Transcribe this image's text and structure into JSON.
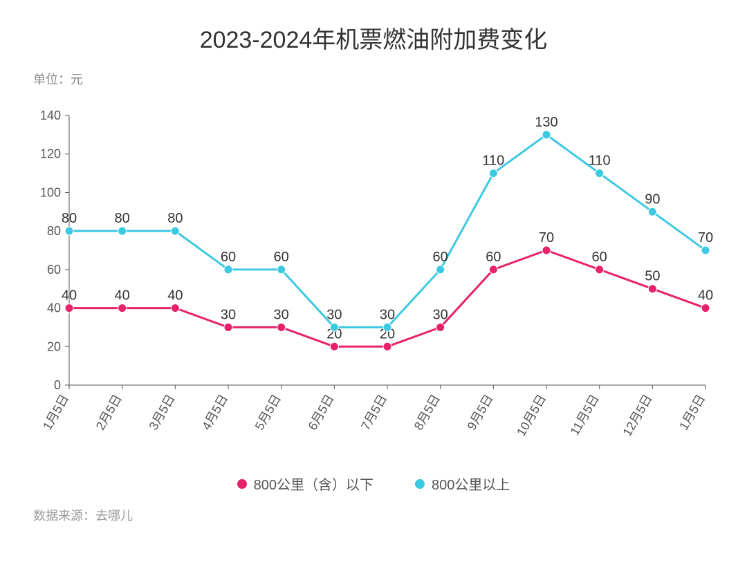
{
  "title": "2023-2024年机票燃油附加费变化",
  "unit_label": "单位：元",
  "source_label": "数据来源：去哪儿",
  "chart": {
    "type": "line",
    "categories": [
      "1月5日",
      "2月5日",
      "3月5日",
      "4月5日",
      "5月5日",
      "6月5日",
      "7月5日",
      "8月5日",
      "9月5日",
      "10月5日",
      "11月5日",
      "12月5日",
      "1月5日"
    ],
    "series": [
      {
        "name": "800公里（含）以下",
        "color": "#e8216b",
        "values": [
          40,
          40,
          40,
          30,
          30,
          20,
          20,
          30,
          60,
          70,
          60,
          50,
          40
        ]
      },
      {
        "name": "800公里以上",
        "color": "#3cc9e2",
        "values": [
          80,
          80,
          80,
          60,
          60,
          30,
          30,
          60,
          110,
          130,
          110,
          90,
          70
        ]
      }
    ],
    "ylim": [
      0,
      140
    ],
    "ytick_step": 20,
    "line_width": 3,
    "marker_radius": 6,
    "background_color": "#ffffff",
    "axis_color": "#555555",
    "data_label_fontsize": 20,
    "axis_label_fontsize": 18,
    "tick_label_fontsize": 18,
    "xlabel_rotation": -60
  },
  "legend": {
    "items": [
      {
        "label": "800公里（含）以下",
        "color": "#e8216b"
      },
      {
        "label": "800公里以上",
        "color": "#3cc9e2"
      }
    ]
  }
}
